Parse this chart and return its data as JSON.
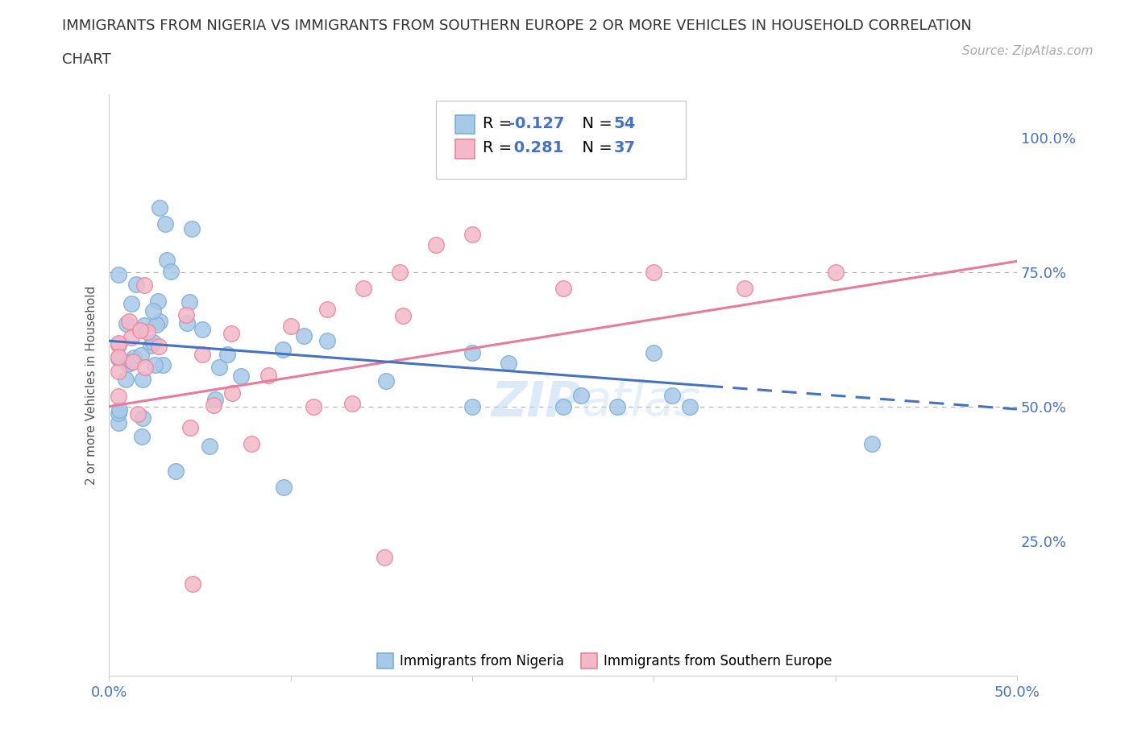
{
  "title_line1": "IMMIGRANTS FROM NIGERIA VS IMMIGRANTS FROM SOUTHERN EUROPE 2 OR MORE VEHICLES IN HOUSEHOLD CORRELATION",
  "title_line2": "CHART",
  "source": "Source: ZipAtlas.com",
  "ylabel": "2 or more Vehicles in Household",
  "xlim": [
    0.0,
    0.5
  ],
  "ylim": [
    0.0,
    1.08
  ],
  "xtick_positions": [
    0.0,
    0.1,
    0.2,
    0.3,
    0.4,
    0.5
  ],
  "xtick_labels": [
    "0.0%",
    "",
    "",
    "",
    "",
    "50.0%"
  ],
  "ytick_positions": [
    0.25,
    0.5,
    0.75,
    1.0
  ],
  "ytick_labels": [
    "25.0%",
    "50.0%",
    "75.0%",
    "100.0%"
  ],
  "hlines": [
    0.5,
    0.75
  ],
  "nigeria_color": "#a8c8e8",
  "nigeria_edge": "#7bafd4",
  "southern_color": "#f4b8c8",
  "southern_edge": "#e8849a",
  "nigeria_line_color": "#4472c4",
  "southern_line_color": "#e87a9a",
  "nigeria_line_dash_start": 0.33,
  "nigeria_R": -0.127,
  "nigeria_N": 54,
  "southern_R": 0.281,
  "southern_N": 37,
  "watermark": "ZIPatlas",
  "nigeria_line_y0": 0.622,
  "nigeria_line_y1": 0.495,
  "southern_line_y0": 0.5,
  "southern_line_y1": 0.77
}
